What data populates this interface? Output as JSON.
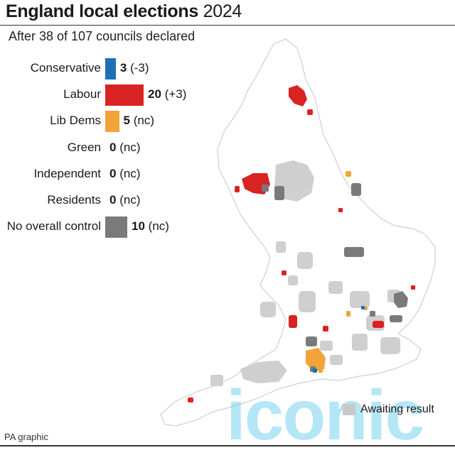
{
  "title": {
    "bold": "England local elections",
    "year": "2024"
  },
  "subtitle": "After 38 of 107 councils declared",
  "legend": {
    "awaiting": "Awaiting result"
  },
  "footer": "PA graphic",
  "watermark": "iconic",
  "colors": {
    "Conservative": "#1f6fb5",
    "Labour": "#d92323",
    "Lib Dems": "#f0a43a",
    "Green": "#4caf50",
    "Independent": "#999999",
    "Residents": "#999999",
    "No overall control": "#7a7a7a",
    "awaiting": "#c8c8c8",
    "outline": "#cfcfcf"
  },
  "chart_data": {
    "type": "bar",
    "categories": [
      "Conservative",
      "Labour",
      "Lib Dems",
      "Green",
      "Independent",
      "Residents",
      "No overall control"
    ],
    "values": [
      3,
      20,
      5,
      0,
      0,
      0,
      10
    ],
    "changes": [
      "(-3)",
      "(+3)",
      "(nc)",
      "(nc)",
      "(nc)",
      "(nc)",
      "(nc)"
    ],
    "title": "England local elections 2024",
    "subtitle": "After 38 of 107 councils declared"
  }
}
